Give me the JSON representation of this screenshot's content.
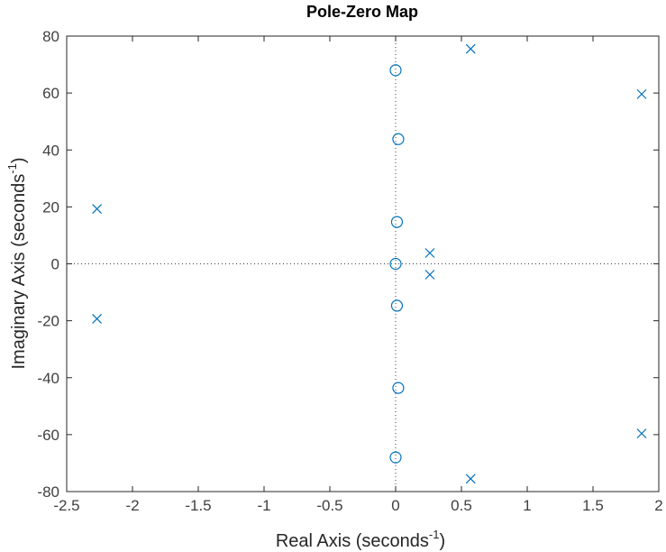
{
  "chart_data": {
    "type": "scatter",
    "title": "Pole-Zero Map",
    "xlabel": "Real Axis (seconds",
    "ylabel": "Imaginary Axis (seconds",
    "label_exponent": "-1",
    "label_close": ")",
    "xlim": [
      -2.5,
      2
    ],
    "ylim": [
      -80,
      80
    ],
    "x_ticks": [
      -2.5,
      -2,
      -1.5,
      -1,
      -0.5,
      0,
      0.5,
      1,
      1.5,
      2
    ],
    "y_ticks": [
      -80,
      -60,
      -40,
      -20,
      0,
      20,
      40,
      60,
      80
    ],
    "grid": false,
    "reference_lines": "dotted lines at x = 0 and y = 0",
    "marker_color": "#0072BD",
    "axes_color": "#262626",
    "series": [
      {
        "marker": "x",
        "points": [
          {
            "x": -2.27,
            "y": 19.3
          },
          {
            "x": -2.27,
            "y": -19.3
          },
          {
            "x": 0.26,
            "y": 3.8
          },
          {
            "x": 0.26,
            "y": -3.8
          },
          {
            "x": 0.57,
            "y": 75.5
          },
          {
            "x": 0.57,
            "y": -75.5
          },
          {
            "x": 1.87,
            "y": 59.6
          },
          {
            "x": 1.87,
            "y": -59.6
          }
        ]
      },
      {
        "marker": "o",
        "points": [
          {
            "x": 0.0,
            "y": 68.0
          },
          {
            "x": 0.02,
            "y": 43.8
          },
          {
            "x": 0.01,
            "y": 14.7
          },
          {
            "x": 0.0,
            "y": 0.0
          },
          {
            "x": 0.01,
            "y": -14.7
          },
          {
            "x": 0.02,
            "y": -43.6
          },
          {
            "x": 0.0,
            "y": -68.0
          }
        ]
      }
    ]
  }
}
